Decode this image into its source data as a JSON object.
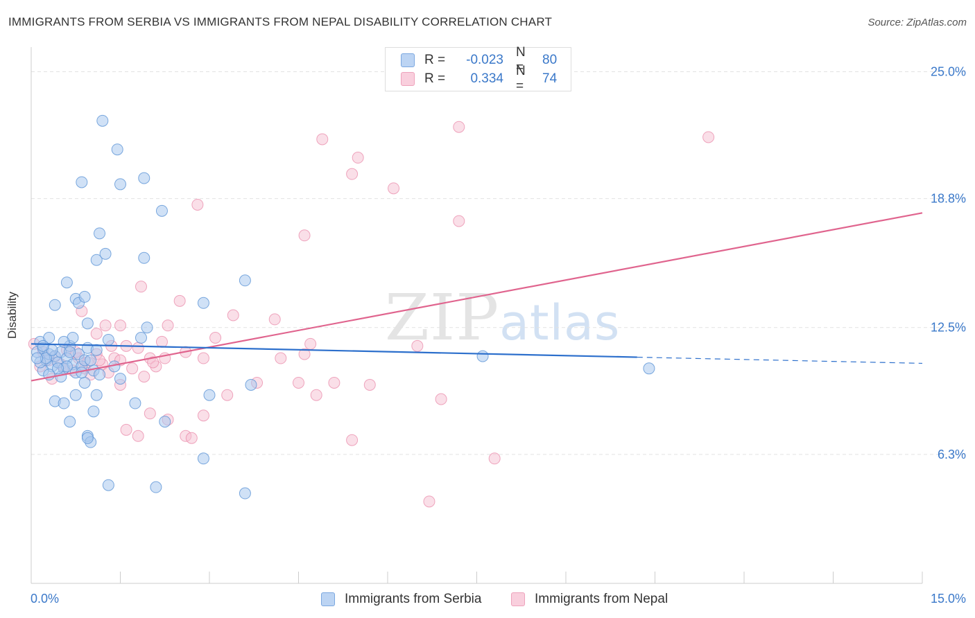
{
  "title": "IMMIGRANTS FROM SERBIA VS IMMIGRANTS FROM NEPAL DISABILITY CORRELATION CHART",
  "source": "Source: ZipAtlas.com",
  "watermark": {
    "zip": "ZIP",
    "atlas": "atlas"
  },
  "legend": {
    "serbia": {
      "r_label": "R =",
      "r_value": "-0.023",
      "n_label": "N =",
      "n_value": "80"
    },
    "nepal": {
      "r_label": "R =",
      "r_value": "0.334",
      "n_label": "N =",
      "n_value": "74"
    }
  },
  "colors": {
    "serbia_fill": "#a9c8ef",
    "serbia_stroke": "#5b93d6",
    "serbia_line": "#2c6fcc",
    "nepal_fill": "#f6bfd1",
    "nepal_stroke": "#e98aa9",
    "nepal_line": "#e0648e",
    "axis_label": "#3a78c9",
    "grid": "#e2e2e2"
  },
  "chart_data": {
    "type": "scatter",
    "title": "IMMIGRANTS FROM SERBIA VS IMMIGRANTS FROM NEPAL DISABILITY CORRELATION CHART",
    "xlabel": "",
    "ylabel": "Disability",
    "xlim": [
      0,
      15
    ],
    "ylim": [
      0,
      26.2
    ],
    "x_tick_labels": [
      "0.0%",
      "15.0%"
    ],
    "y_ticks": [
      6.3,
      12.5,
      18.8,
      25.0
    ],
    "y_tick_labels": [
      "6.3%",
      "12.5%",
      "18.8%",
      "25.0%"
    ],
    "legend_labels": [
      "Immigrants from Serbia",
      "Immigrants from Nepal"
    ],
    "series": [
      {
        "name": "Immigrants from Serbia",
        "trend": {
          "x": [
            0,
            10.2
          ],
          "y": [
            11.7,
            11.05
          ],
          "dashed_to": [
            15,
            10.75
          ]
        },
        "points": [
          [
            0.1,
            11.3
          ],
          [
            0.15,
            11.8
          ],
          [
            0.2,
            11.5
          ],
          [
            0.25,
            10.9
          ],
          [
            0.3,
            11.2
          ],
          [
            0.35,
            10.6
          ],
          [
            0.4,
            11.1
          ],
          [
            0.2,
            10.4
          ],
          [
            0.3,
            10.2
          ],
          [
            0.45,
            10.8
          ],
          [
            0.5,
            11.3
          ],
          [
            0.55,
            10.5
          ],
          [
            0.6,
            11.0
          ],
          [
            0.65,
            11.6
          ],
          [
            0.7,
            10.7
          ],
          [
            0.75,
            10.3
          ],
          [
            0.8,
            11.2
          ],
          [
            0.85,
            10.6
          ],
          [
            0.9,
            10.9
          ],
          [
            0.95,
            11.5
          ],
          [
            1.05,
            10.4
          ],
          [
            1.1,
            11.4
          ],
          [
            0.4,
            13.6
          ],
          [
            0.6,
            14.7
          ],
          [
            0.75,
            13.9
          ],
          [
            0.8,
            13.7
          ],
          [
            0.9,
            14.0
          ],
          [
            0.95,
            12.7
          ],
          [
            1.1,
            15.8
          ],
          [
            1.15,
            17.1
          ],
          [
            1.25,
            16.1
          ],
          [
            1.45,
            21.2
          ],
          [
            1.5,
            19.5
          ],
          [
            1.2,
            22.6
          ],
          [
            0.85,
            19.6
          ],
          [
            1.9,
            19.8
          ],
          [
            2.2,
            18.2
          ],
          [
            1.9,
            15.9
          ],
          [
            1.95,
            12.5
          ],
          [
            1.85,
            12.0
          ],
          [
            0.4,
            8.9
          ],
          [
            0.55,
            8.8
          ],
          [
            0.65,
            7.9
          ],
          [
            0.75,
            9.2
          ],
          [
            0.9,
            9.8
          ],
          [
            1.1,
            9.2
          ],
          [
            1.05,
            8.4
          ],
          [
            0.95,
            7.2
          ],
          [
            1.0,
            6.9
          ],
          [
            1.3,
            11.9
          ],
          [
            1.5,
            10.0
          ],
          [
            1.75,
            8.8
          ],
          [
            2.25,
            7.9
          ],
          [
            2.9,
            6.1
          ],
          [
            3.0,
            9.2
          ],
          [
            3.7,
            9.7
          ],
          [
            3.6,
            14.8
          ],
          [
            2.9,
            13.7
          ],
          [
            1.3,
            4.8
          ],
          [
            2.1,
            4.7
          ],
          [
            3.6,
            4.4
          ],
          [
            0.15,
            10.8
          ],
          [
            0.25,
            11.0
          ],
          [
            0.35,
            11.4
          ],
          [
            0.5,
            10.1
          ],
          [
            0.6,
            10.6
          ],
          [
            1.0,
            10.9
          ],
          [
            0.7,
            12.0
          ],
          [
            0.55,
            11.8
          ],
          [
            0.3,
            12.0
          ],
          [
            7.6,
            11.1
          ],
          [
            10.4,
            10.5
          ],
          [
            0.2,
            11.6
          ],
          [
            0.45,
            10.5
          ],
          [
            0.65,
            11.3
          ],
          [
            0.85,
            10.3
          ],
          [
            1.15,
            10.2
          ],
          [
            1.4,
            10.6
          ],
          [
            0.95,
            7.1
          ],
          [
            0.1,
            11.0
          ]
        ]
      },
      {
        "name": "Immigrants from Nepal",
        "trend": {
          "x": [
            0,
            15
          ],
          "y": [
            9.9,
            18.1
          ]
        },
        "points": [
          [
            0.05,
            11.7
          ],
          [
            0.2,
            11.3
          ],
          [
            0.3,
            10.9
          ],
          [
            0.4,
            11.1
          ],
          [
            0.5,
            10.7
          ],
          [
            0.6,
            11.4
          ],
          [
            0.7,
            10.4
          ],
          [
            0.8,
            11.0
          ],
          [
            0.9,
            10.5
          ],
          [
            1.0,
            10.2
          ],
          [
            1.1,
            11.2
          ],
          [
            1.2,
            10.7
          ],
          [
            1.3,
            10.3
          ],
          [
            1.4,
            11.0
          ],
          [
            1.5,
            10.9
          ],
          [
            1.6,
            11.6
          ],
          [
            1.7,
            10.5
          ],
          [
            1.8,
            11.5
          ],
          [
            1.9,
            10.1
          ],
          [
            2.0,
            11.0
          ],
          [
            2.1,
            10.6
          ],
          [
            2.2,
            11.8
          ],
          [
            2.6,
            11.3
          ],
          [
            1.1,
            12.2
          ],
          [
            1.25,
            12.6
          ],
          [
            1.5,
            12.6
          ],
          [
            2.3,
            12.6
          ],
          [
            2.5,
            13.8
          ],
          [
            0.85,
            13.3
          ],
          [
            1.85,
            14.5
          ],
          [
            2.9,
            11.0
          ],
          [
            3.1,
            12.0
          ],
          [
            3.4,
            13.1
          ],
          [
            4.1,
            12.9
          ],
          [
            4.6,
            11.2
          ],
          [
            4.7,
            11.7
          ],
          [
            2.8,
            18.5
          ],
          [
            4.6,
            17.0
          ],
          [
            4.9,
            21.7
          ],
          [
            5.4,
            20.0
          ],
          [
            5.5,
            20.8
          ],
          [
            6.1,
            19.3
          ],
          [
            7.2,
            22.3
          ],
          [
            7.2,
            17.7
          ],
          [
            11.4,
            21.8
          ],
          [
            6.5,
            11.6
          ],
          [
            4.2,
            11.0
          ],
          [
            3.8,
            9.8
          ],
          [
            4.5,
            9.8
          ],
          [
            5.1,
            9.8
          ],
          [
            5.7,
            9.7
          ],
          [
            4.8,
            9.2
          ],
          [
            3.3,
            9.2
          ],
          [
            1.5,
            9.7
          ],
          [
            2.0,
            8.3
          ],
          [
            2.3,
            8.0
          ],
          [
            2.9,
            8.2
          ],
          [
            1.6,
            7.5
          ],
          [
            1.8,
            7.2
          ],
          [
            2.6,
            7.2
          ],
          [
            2.7,
            7.1
          ],
          [
            5.4,
            7.0
          ],
          [
            6.9,
            9.0
          ],
          [
            7.8,
            6.1
          ],
          [
            6.7,
            4.0
          ],
          [
            0.15,
            10.6
          ],
          [
            0.35,
            10.0
          ],
          [
            0.55,
            10.5
          ],
          [
            0.75,
            11.3
          ],
          [
            0.95,
            10.8
          ],
          [
            1.15,
            10.9
          ],
          [
            1.35,
            11.6
          ],
          [
            2.05,
            10.8
          ],
          [
            2.25,
            11.0
          ]
        ]
      }
    ]
  }
}
